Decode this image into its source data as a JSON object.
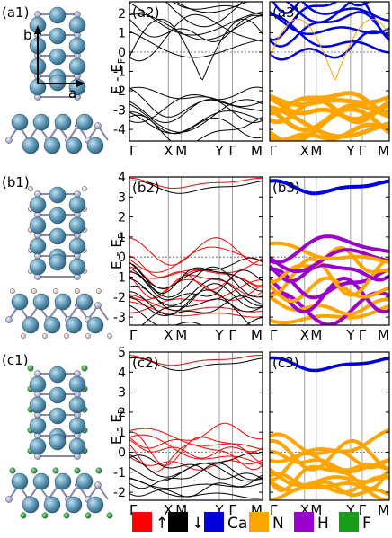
{
  "panels": {
    "a1": "(a1)",
    "a2": "(a2)",
    "a3": "(a3)",
    "b1": "(b1)",
    "b2": "(b2)",
    "b3": "(b3)",
    "c1": "(c1)",
    "c2": "(c2)",
    "c3": "(c3)"
  },
  "lattice": {
    "a": "a",
    "b": "b"
  },
  "y_axis_label": "E - E",
  "y_axis_sub": "F",
  "x_ticks": [
    "Γ",
    "X",
    "M",
    "Y",
    "Γ",
    "M"
  ],
  "legend": [
    {
      "label": "↑",
      "color": "#ff0000"
    },
    {
      "label": "↓",
      "color": "#000000"
    },
    {
      "label": "Ca",
      "color": "#0000dd"
    },
    {
      "label": "N",
      "color": "#ffa500"
    },
    {
      "label": "H",
      "color": "#9900cc"
    },
    {
      "label": "F",
      "color": "#1a9c1a"
    }
  ],
  "chart_data": [
    {
      "type": "line",
      "panel": "a2",
      "ylim": [
        -4.6,
        2.6
      ],
      "yticks": [
        -4,
        -3,
        -2,
        -1,
        0,
        1,
        2
      ],
      "fermi": 0,
      "series": [
        {
          "color": "#000000"
        }
      ]
    },
    {
      "type": "line",
      "panel": "a3",
      "ylim": [
        -4.6,
        2.6
      ],
      "yticks": [
        -4,
        -3,
        -2,
        -1,
        0,
        1,
        2
      ],
      "fermi": 0,
      "series": [
        {
          "color": "#0000dd"
        },
        {
          "color": "#ffa500"
        }
      ]
    },
    {
      "type": "line",
      "panel": "b2",
      "ylim": [
        -3.4,
        4.0
      ],
      "yticks": [
        -3,
        -2,
        -1,
        0,
        1,
        2,
        3,
        4
      ],
      "fermi": 0,
      "series": [
        {
          "color": "#ff0000"
        },
        {
          "color": "#000000"
        }
      ]
    },
    {
      "type": "line",
      "panel": "b3",
      "ylim": [
        -3.4,
        4.0
      ],
      "yticks": [
        -3,
        -2,
        -1,
        0,
        1,
        2,
        3,
        4
      ],
      "fermi": 0,
      "series": [
        {
          "color": "#0000dd"
        },
        {
          "color": "#ffa500"
        },
        {
          "color": "#9900cc"
        }
      ]
    },
    {
      "type": "line",
      "panel": "c2",
      "ylim": [
        -2.4,
        5.0
      ],
      "yticks": [
        -2,
        -1,
        0,
        1,
        2,
        3,
        4,
        5
      ],
      "fermi": 0,
      "series": [
        {
          "color": "#ff0000"
        },
        {
          "color": "#000000"
        }
      ]
    },
    {
      "type": "line",
      "panel": "c3",
      "ylim": [
        -2.4,
        5.0
      ],
      "yticks": [
        -2,
        -1,
        0,
        1,
        2,
        3,
        4,
        5
      ],
      "fermi": 0,
      "series": [
        {
          "color": "#0000dd"
        },
        {
          "color": "#ffa500"
        },
        {
          "color": "#1a9c1a"
        }
      ]
    }
  ]
}
